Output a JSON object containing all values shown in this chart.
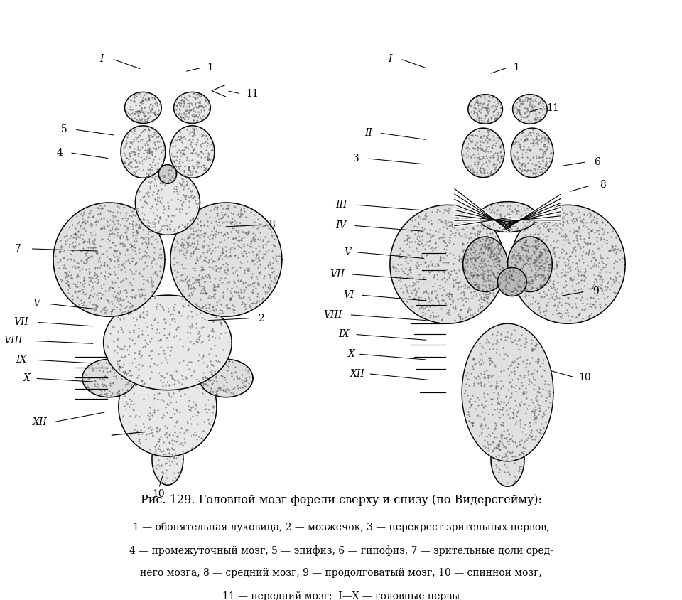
{
  "title": "Рис. 129. Головной мозг форели сверху и снизу (по Видерсгейму):",
  "caption_lines": [
    "1 — обонятельная луковица, 2 — мозжечок, 3 — перекрест зрительных нервов,",
    "4 — промежуточный мозг, 5 — эпифиз, 6 — гипофиз, 7 — зрительные доли сред-",
    "него мозга, 8 — средний мозг, 9 — продолговатый мозг, 10 — спинной мозг,",
    "11 — передний мозг;  I—X — головные нервы"
  ],
  "bg_color": "#ffffff",
  "fig_width": 9.6,
  "fig_height": 8.44,
  "stipple_color": "#555555",
  "outline_color": "#000000"
}
